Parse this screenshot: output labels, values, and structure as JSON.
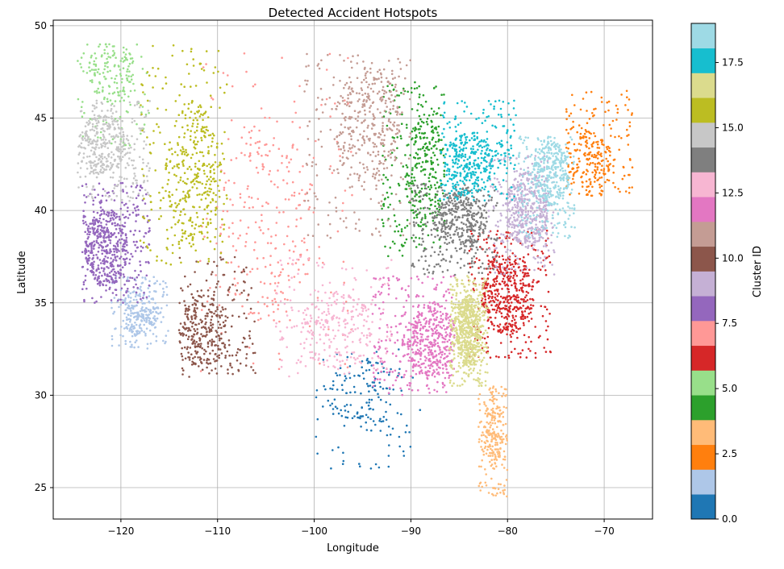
{
  "chart_data": {
    "type": "scatter",
    "title": "Detected Accident Hotspots",
    "xlabel": "Longitude",
    "ylabel": "Latitude",
    "xlim": [
      -127.0,
      -65.0
    ],
    "ylim": [
      23.3,
      50.3
    ],
    "x_ticks": [
      -120,
      -110,
      -100,
      -90,
      -80,
      -70
    ],
    "x_tick_labels": [
      "−120",
      "−110",
      "−100",
      "−90",
      "−80",
      "−70"
    ],
    "y_ticks": [
      25,
      30,
      35,
      40,
      45,
      50
    ],
    "y_tick_labels": [
      "25",
      "30",
      "35",
      "40",
      "45",
      "50"
    ],
    "grid": true,
    "colorbar": {
      "label": "Cluster ID",
      "range": [
        0,
        19
      ],
      "ticks": [
        0,
        2.5,
        5,
        7.5,
        10,
        12.5,
        15,
        17.5
      ],
      "tick_labels": [
        "0.0",
        "2.5",
        "5.0",
        "7.5",
        "10.0",
        "12.5",
        "15.0",
        "17.5"
      ],
      "colors": [
        "#1f77b4",
        "#aec7e8",
        "#ff7f0e",
        "#ffbb78",
        "#2ca02c",
        "#98df8a",
        "#d62728",
        "#ff9896",
        "#9467bd",
        "#c5b0d5",
        "#8c564b",
        "#c49c94",
        "#e377c2",
        "#f7b6d2",
        "#7f7f7f",
        "#c7c7c7",
        "#bcbd22",
        "#dbdb8d",
        "#17becf",
        "#9edae5"
      ]
    },
    "clusters": [
      {
        "id": 0,
        "color": "#1f77b4",
        "lon_range": [
          -100,
          -89
        ],
        "lat_range": [
          26,
          32.5
        ],
        "center": [
          -95,
          30
        ],
        "size": 180
      },
      {
        "id": 1,
        "color": "#aec7e8",
        "lon_range": [
          -121,
          -115
        ],
        "lat_range": [
          32.5,
          36.5
        ],
        "center": [
          -118,
          34.5
        ],
        "size": 300
      },
      {
        "id": 2,
        "color": "#ff7f0e",
        "lon_range": [
          -74,
          -67
        ],
        "lat_range": [
          40.8,
          46.5
        ],
        "center": [
          -71.5,
          42.5
        ],
        "size": 280
      },
      {
        "id": 3,
        "color": "#ffbb78",
        "lon_range": [
          -83,
          -80
        ],
        "lat_range": [
          24.5,
          30.5
        ],
        "center": [
          -81.5,
          28
        ],
        "size": 260
      },
      {
        "id": 4,
        "color": "#2ca02c",
        "lon_range": [
          -93,
          -86.5
        ],
        "lat_range": [
          37.5,
          47
        ],
        "center": [
          -88.5,
          42
        ],
        "size": 380
      },
      {
        "id": 5,
        "color": "#98df8a",
        "lon_range": [
          -124.5,
          -117
        ],
        "lat_range": [
          43.5,
          49
        ],
        "center": [
          -121,
          47.5
        ],
        "size": 200
      },
      {
        "id": 6,
        "color": "#d62728",
        "lon_range": [
          -84,
          -75.5
        ],
        "lat_range": [
          32,
          39
        ],
        "center": [
          -80,
          35.5
        ],
        "size": 600
      },
      {
        "id": 7,
        "color": "#ff9896",
        "lon_range": [
          -112,
          -96
        ],
        "lat_range": [
          31,
          48.5
        ],
        "center": [
          -105,
          39.5
        ],
        "size": 320
      },
      {
        "id": 8,
        "color": "#9467bd",
        "lon_range": [
          -124,
          -117
        ],
        "lat_range": [
          35,
          41.5
        ],
        "center": [
          -121.5,
          38
        ],
        "size": 600
      },
      {
        "id": 9,
        "color": "#c5b0d5",
        "lon_range": [
          -82,
          -75
        ],
        "lat_range": [
          36.5,
          43
        ],
        "center": [
          -78,
          40
        ],
        "size": 560
      },
      {
        "id": 10,
        "color": "#8c564b",
        "lon_range": [
          -114,
          -106
        ],
        "lat_range": [
          31,
          37.5
        ],
        "center": [
          -111.5,
          33.5
        ],
        "size": 380
      },
      {
        "id": 11,
        "color": "#c49c94",
        "lon_range": [
          -101,
          -90
        ],
        "lat_range": [
          38.5,
          48.5
        ],
        "center": [
          -94.5,
          44.5
        ],
        "size": 460
      },
      {
        "id": 12,
        "color": "#e377c2",
        "lon_range": [
          -94,
          -85.5
        ],
        "lat_range": [
          30,
          36.5
        ],
        "center": [
          -88,
          33
        ],
        "size": 560
      },
      {
        "id": 13,
        "color": "#f7b6d2",
        "lon_range": [
          -104,
          -92
        ],
        "lat_range": [
          31,
          37.5
        ],
        "center": [
          -97.5,
          33.5
        ],
        "size": 320
      },
      {
        "id": 14,
        "color": "#7f7f7f",
        "lon_range": [
          -90,
          -81
        ],
        "lat_range": [
          36.5,
          41.5
        ],
        "center": [
          -85,
          39.5
        ],
        "size": 500
      },
      {
        "id": 15,
        "color": "#c7c7c7",
        "lon_range": [
          -124.5,
          -117
        ],
        "lat_range": [
          40.5,
          46
        ],
        "center": [
          -122,
          43.5
        ],
        "size": 420
      },
      {
        "id": 16,
        "color": "#bcbd22",
        "lon_range": [
          -118,
          -109
        ],
        "lat_range": [
          37,
          49
        ],
        "center": [
          -112.5,
          42
        ],
        "size": 460
      },
      {
        "id": 17,
        "color": "#dbdb8d",
        "lon_range": [
          -86,
          -82
        ],
        "lat_range": [
          30.5,
          36.5
        ],
        "center": [
          -84,
          33.5
        ],
        "size": 700
      },
      {
        "id": 18,
        "color": "#17becf",
        "lon_range": [
          -87,
          -79
        ],
        "lat_range": [
          40.5,
          46
        ],
        "center": [
          -84,
          42.5
        ],
        "size": 440
      },
      {
        "id": 19,
        "color": "#9edae5",
        "lon_range": [
          -79,
          -73
        ],
        "lat_range": [
          38.5,
          44
        ],
        "center": [
          -75.5,
          42
        ],
        "size": 460
      }
    ]
  }
}
